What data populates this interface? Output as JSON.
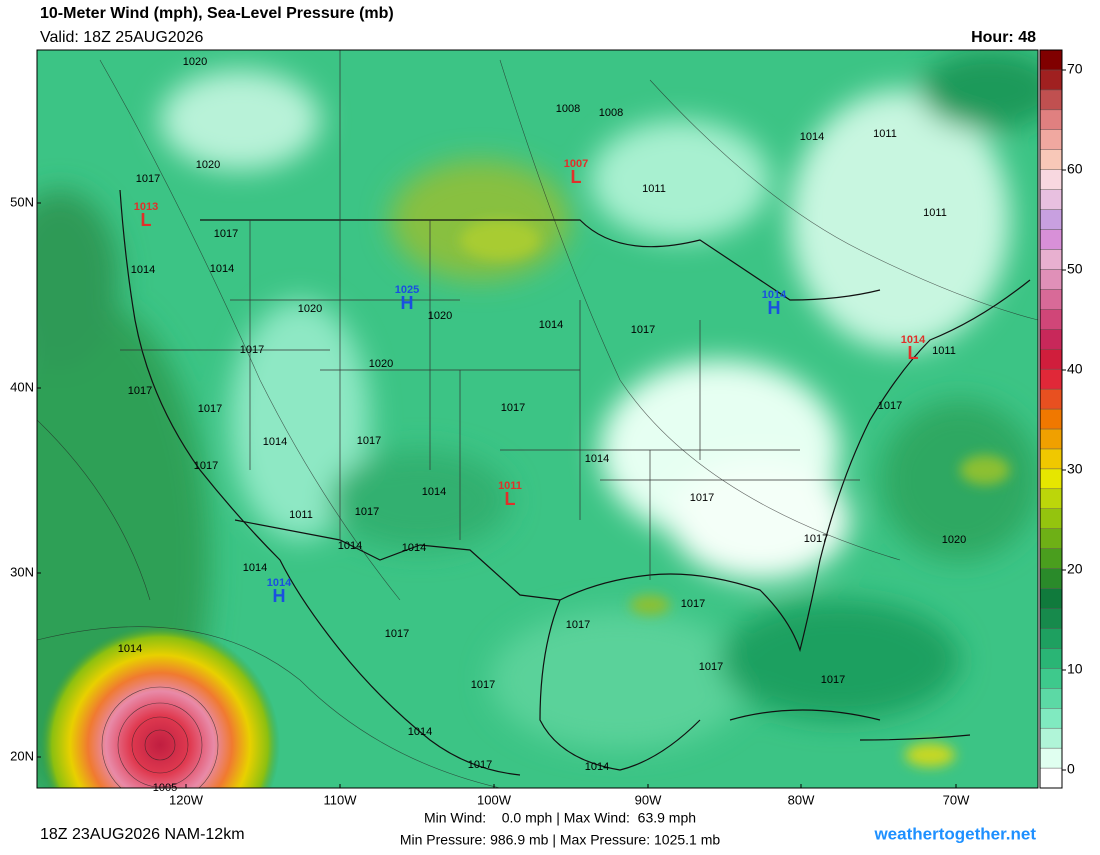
{
  "header": {
    "title": "10-Meter Wind (mph), Sea-Level Pressure (mb)",
    "valid": "Valid: 18Z 25AUG2026",
    "hour": "Hour: 48"
  },
  "map": {
    "lat_labels": [
      "50N",
      "40N",
      "30N",
      "20N"
    ],
    "lon_labels": [
      "120W",
      "110W",
      "100W",
      "90W",
      "80W",
      "70W"
    ],
    "centers": [
      {
        "letter": "L",
        "value": "1013",
        "color": "#e0302a"
      },
      {
        "letter": "L",
        "value": "1007",
        "color": "#e0302a"
      },
      {
        "letter": "H",
        "value": "1025",
        "color": "#1a4fe0"
      },
      {
        "letter": "H",
        "value": "1014",
        "color": "#1a4fe0"
      },
      {
        "letter": "L",
        "value": "1014",
        "color": "#e0302a"
      },
      {
        "letter": "L",
        "value": "1011",
        "color": "#e0302a"
      },
      {
        "letter": "H",
        "value": "1014",
        "color": "#1a4fe0"
      }
    ],
    "isobar_labels": [
      "1020",
      "1008",
      "1008",
      "1014",
      "1011",
      "1020",
      "1017",
      "1011",
      "1011",
      "1017",
      "1014",
      "1014",
      "1020",
      "1020",
      "1014",
      "1017",
      "1017",
      "1020",
      "1011",
      "1017",
      "1017",
      "1017",
      "1017",
      "1014",
      "1017",
      "1014",
      "1017",
      "1014",
      "1017",
      "1011",
      "1017",
      "1017",
      "1020",
      "1014",
      "1014",
      "1014",
      "1017",
      "1017",
      "1017",
      "1014",
      "1017",
      "1017",
      "1017",
      "1014",
      "1017",
      "1014",
      "1005"
    ]
  },
  "colorbar": {
    "ticks": [
      0,
      10,
      20,
      30,
      40,
      50,
      60,
      70
    ],
    "colors": [
      "#ffffff",
      "#e0fff0",
      "#b0f5d8",
      "#80eac0",
      "#5cd9a5",
      "#3ec98c",
      "#2ab575",
      "#1ea060",
      "#178a4c",
      "#107a3c",
      "#2a8a2a",
      "#4a9e1e",
      "#6eb016",
      "#94c40e",
      "#bcd60a",
      "#e6e600",
      "#f0c800",
      "#f0a000",
      "#f07800",
      "#e85020",
      "#e02838",
      "#d01e3c",
      "#c8285a",
      "#d04678",
      "#d86a98",
      "#e090b8",
      "#e8b0d0",
      "#d890d8",
      "#c8a0e0",
      "#e8c0e0",
      "#f8d8e0",
      "#f8c8b8",
      "#f0a8a0",
      "#e08080",
      "#c05050",
      "#a02020",
      "#800000"
    ]
  },
  "footer": {
    "run": "18Z 23AUG2026 NAM-12km",
    "wind": "Min Wind:    0.0 mph | Max Wind:  63.9 mph",
    "pressure": "Min Pressure: 986.9 mb | Max Pressure: 1025.1 mb",
    "site": "weathertogether.net"
  }
}
